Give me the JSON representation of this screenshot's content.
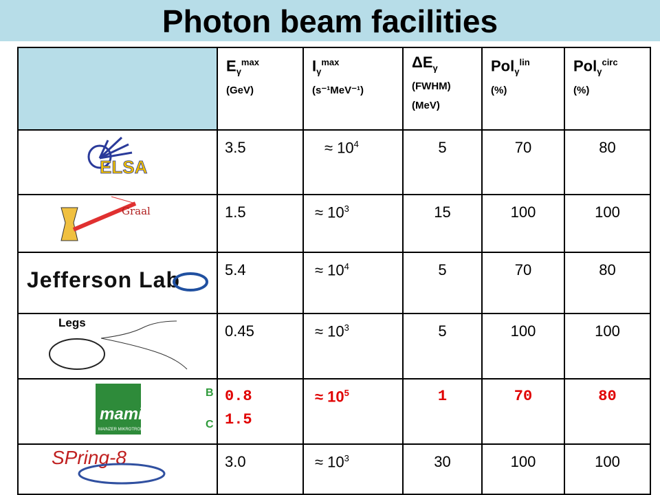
{
  "title": "Photon beam facilities",
  "table": {
    "header": [
      {
        "symbol": "E",
        "sub": "γ",
        "sup": "max",
        "unit": [
          "(GeV)"
        ]
      },
      {
        "symbol": "I",
        "sub": "γ",
        "sup": "max",
        "unit": [
          "(s⁻¹MeV⁻¹)"
        ]
      },
      {
        "symbol": "ΔE",
        "sub": "γ",
        "unit": [
          "(FWHM)",
          "(MeV)"
        ]
      },
      {
        "symbol": "Pol",
        "sub": "γ",
        "sup": "lin",
        "unit": [
          "(%)"
        ]
      },
      {
        "symbol": "Pol",
        "sub": "γ",
        "sup": "circ",
        "unit": [
          "(%)"
        ]
      }
    ],
    "rows": [
      {
        "facility": "ELSA",
        "energy": [
          "3.5"
        ],
        "intensity": {
          "base": "≈ 10",
          "exp": "4"
        },
        "resolution": "5",
        "pol_lin": "70",
        "pol_circ": "80"
      },
      {
        "facility": "Graal",
        "energy": [
          "1.5"
        ],
        "intensity": {
          "base": "≈ 10",
          "exp": "3"
        },
        "resolution": "15",
        "pol_lin": "100",
        "pol_circ": "100"
      },
      {
        "facility": "Jefferson Lab",
        "energy": [
          "5.4"
        ],
        "intensity": {
          "base": "≈ 10",
          "exp": "4"
        },
        "resolution": "5",
        "pol_lin": "70",
        "pol_circ": "80"
      },
      {
        "facility": "Legs",
        "energy": [
          "0.45"
        ],
        "intensity": {
          "base": "≈ 10",
          "exp": "3"
        },
        "resolution": "5",
        "pol_lin": "100",
        "pol_circ": "100"
      },
      {
        "facility": "mami",
        "subtitle": "MAINZER MIKROTRON",
        "labels": [
          "B",
          "C"
        ],
        "energy": [
          "0.8",
          "1.5"
        ],
        "intensity": {
          "base": "≈ 10",
          "exp": "5"
        },
        "resolution": "1",
        "pol_lin": "70",
        "pol_circ": "80",
        "highlight": true
      },
      {
        "facility": "SPring-8",
        "energy": [
          "3.0"
        ],
        "intensity": {
          "base": "≈ 10",
          "exp": "3"
        },
        "resolution": "30",
        "pol_lin": "100",
        "pol_circ": "100"
      }
    ]
  }
}
